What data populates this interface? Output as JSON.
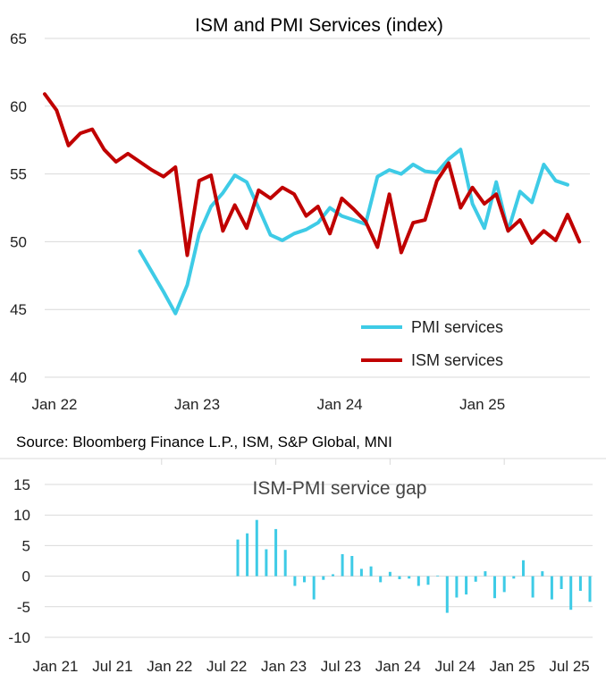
{
  "source_note": "Source: Bloomberg Finance L.P., ISM, S&P Global, MNI",
  "colors": {
    "pmi": "#3ecbe6",
    "ism": "#c00000",
    "gap": "#3ecbe6",
    "grid": "#d9d9d9"
  },
  "chart_data": [
    {
      "type": "line",
      "title": "ISM and PMI Services (index)",
      "ylim": [
        40,
        65
      ],
      "yticks": [
        40,
        45,
        50,
        55,
        60,
        65
      ],
      "xlim": [
        0,
        44
      ],
      "xticks": [
        {
          "pos": 0,
          "label": "Jan 22"
        },
        {
          "pos": 12,
          "label": "Jan 23"
        },
        {
          "pos": 24,
          "label": "Jan 24"
        },
        {
          "pos": 36,
          "label": "Jan 25"
        }
      ],
      "grid": true,
      "legend": "bottom-right",
      "series": [
        {
          "name": "PMI services",
          "key": "pmi",
          "start": 8,
          "values": [
            49.3,
            47.8,
            46.3,
            44.7,
            46.8,
            50.6,
            52.6,
            53.6,
            54.9,
            54.4,
            52.5,
            50.5,
            50.1,
            50.6,
            50.9,
            51.4,
            52.5,
            51.9,
            51.6,
            51.3,
            54.8,
            55.3,
            55.0,
            55.7,
            55.2,
            55.1,
            56.1,
            56.8,
            52.8,
            51.0,
            54.4,
            50.8,
            53.7,
            52.9,
            55.7,
            54.5,
            54.2
          ]
        },
        {
          "name": "ISM services",
          "key": "ism",
          "start": 0,
          "values": [
            60.9,
            59.7,
            57.1,
            58.0,
            58.3,
            56.8,
            55.9,
            56.5,
            55.9,
            55.3,
            54.8,
            55.5,
            49.0,
            54.5,
            54.9,
            50.8,
            52.7,
            51.0,
            53.8,
            53.2,
            54.0,
            53.5,
            51.9,
            52.6,
            50.6,
            53.2,
            52.4,
            51.5,
            49.6,
            53.5,
            49.2,
            51.4,
            51.6,
            54.5,
            55.8,
            52.5,
            54.0,
            52.8,
            53.5,
            50.8,
            51.6,
            49.9,
            50.8,
            50.1,
            52.0,
            50.0
          ]
        }
      ]
    },
    {
      "type": "bar",
      "title": "ISM-PMI service gap",
      "ylim": [
        -10,
        15
      ],
      "yticks": [
        -10,
        -5,
        0,
        5,
        10,
        15
      ],
      "xlim": [
        0,
        57
      ],
      "xticks": [
        {
          "pos": 0,
          "label": "Jan 21"
        },
        {
          "pos": 6,
          "label": "Jul 21"
        },
        {
          "pos": 12,
          "label": "Jan 22"
        },
        {
          "pos": 18,
          "label": "Jul 22"
        },
        {
          "pos": 24,
          "label": "Jan 23"
        },
        {
          "pos": 30,
          "label": "Jul 23"
        },
        {
          "pos": 36,
          "label": "Jan 24"
        },
        {
          "pos": 42,
          "label": "Jul 24"
        },
        {
          "pos": 48,
          "label": "Jan 25"
        },
        {
          "pos": 54,
          "label": "Jul 25"
        }
      ],
      "grid": true,
      "start": 20,
      "values": [
        6.0,
        7.0,
        9.2,
        4.4,
        7.7,
        4.3,
        -1.6,
        -1.0,
        -3.8,
        -0.6,
        0.3,
        3.6,
        3.3,
        1.2,
        1.6,
        -1.0,
        0.7,
        -0.5,
        -0.4,
        -1.6,
        -1.4,
        0.1,
        -6.0,
        -3.5,
        -3.0,
        -0.9,
        0.8,
        -3.6,
        -2.6,
        -0.4,
        2.6,
        -3.5,
        0.8,
        -3.8,
        -2.1,
        -5.5,
        -2.4,
        -4.2
      ]
    }
  ]
}
